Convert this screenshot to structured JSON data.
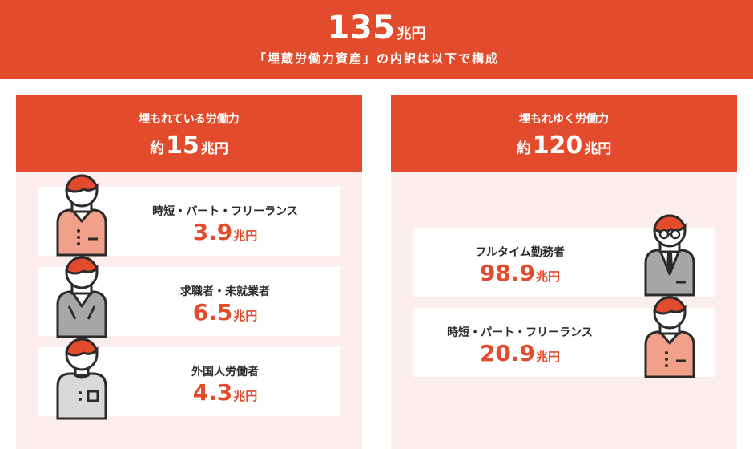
{
  "header": {
    "total_number": "135",
    "total_unit": "兆円",
    "description": "「埋蔵労働力資産」の内訳は以下で構成"
  },
  "left_panel": {
    "title": "埋もれている労働力",
    "total_prefix": "約",
    "total_number": "15",
    "total_unit": "兆円",
    "items": [
      {
        "label": "時短・パート・フリーランス",
        "value": "3.9",
        "unit": "兆円",
        "icon": "person-shirt-orange-icon"
      },
      {
        "label": "求職者・未就業者",
        "value": "6.5",
        "unit": "兆円",
        "icon": "person-shirt-gray-icon"
      },
      {
        "label": "外国人労働者",
        "value": "4.3",
        "unit": "兆円",
        "icon": "person-tshirt-icon"
      }
    ]
  },
  "right_panel": {
    "title": "埋もれゆく労働力",
    "total_prefix": "約",
    "total_number": "120",
    "total_unit": "兆円",
    "items": [
      {
        "label": "フルタイム勤務者",
        "value": "98.9",
        "unit": "兆円",
        "icon": "person-suit-glasses-icon"
      },
      {
        "label": "時短・パート・フリーランス",
        "value": "20.9",
        "unit": "兆円",
        "icon": "person-shirt-orange-icon"
      }
    ]
  },
  "colors": {
    "accent": "#e24c2c",
    "panel_bg": "#fdeeee",
    "card_bg": "#ffffff",
    "shirt_orange": "#f1a08c",
    "shirt_gray": "#a7a7a7",
    "tshirt_light": "#d9d9d9"
  }
}
